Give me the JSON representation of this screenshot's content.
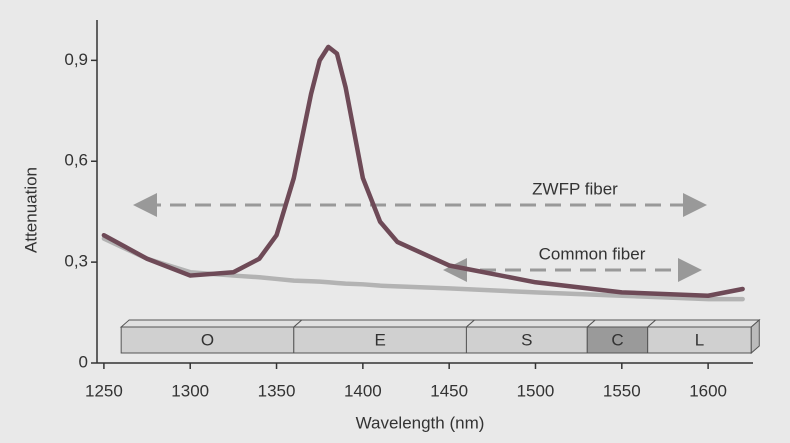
{
  "chart_data": {
    "type": "line",
    "x_label": "Wavelength (nm)",
    "y_label": "Attenuation",
    "x": [
      1250,
      1275,
      1300,
      1325,
      1340,
      1350,
      1360,
      1370,
      1375,
      1380,
      1385,
      1390,
      1400,
      1410,
      1420,
      1450,
      1500,
      1550,
      1600,
      1620
    ],
    "series": [
      {
        "name": "Common fiber",
        "color": "#6e4a57",
        "values": [
          0.38,
          0.31,
          0.26,
          0.27,
          0.31,
          0.38,
          0.55,
          0.8,
          0.9,
          0.94,
          0.92,
          0.82,
          0.55,
          0.42,
          0.36,
          0.29,
          0.24,
          0.21,
          0.2,
          0.22
        ]
      },
      {
        "name": "ZWFP fiber",
        "color": "#b3b3b3",
        "values": [
          0.37,
          0.31,
          0.27,
          0.26,
          0.255,
          0.25,
          0.245,
          0.243,
          0.242,
          0.24,
          0.238,
          0.236,
          0.234,
          0.23,
          0.228,
          0.222,
          0.21,
          0.2,
          0.19,
          0.19
        ]
      }
    ],
    "bands": [
      {
        "label": "O",
        "start": 1260,
        "end": 1360,
        "color": "#d0d0d0"
      },
      {
        "label": "E",
        "start": 1360,
        "end": 1460,
        "color": "#d0d0d0"
      },
      {
        "label": "S",
        "start": 1460,
        "end": 1530,
        "color": "#d0d0d0"
      },
      {
        "label": "C",
        "start": 1530,
        "end": 1565,
        "color": "#9a9a9a"
      },
      {
        "label": "L",
        "start": 1565,
        "end": 1625,
        "color": "#d0d0d0"
      }
    ],
    "xlim": [
      1246,
      1626
    ],
    "ylim": [
      0,
      1.02
    ],
    "xticks": [
      1250,
      1300,
      1350,
      1400,
      1450,
      1500,
      1550,
      1600
    ],
    "yticks": [
      0,
      {
        "value": 0.3,
        "label": "0,3"
      },
      {
        "value": 0.6,
        "label": "0,6"
      },
      {
        "value": 0.9,
        "label": "0,9"
      }
    ]
  }
}
